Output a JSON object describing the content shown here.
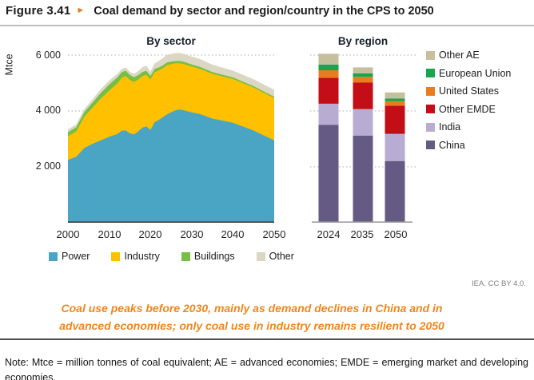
{
  "header": {
    "figure_label": "Figure 3.41",
    "arrow_glyph": "►",
    "title": "Coal demand by sector and region/country in the CPS to 2050"
  },
  "credit": "IEA. CC BY 4.0.",
  "caption": {
    "line1": "Coal use peaks before 2030, mainly as demand declines in China and in",
    "line2": "advanced economies; only coal use in industry remains resilient to 2050",
    "color": "#F0861B"
  },
  "note": "Note: Mtce = million tonnes of coal equivalent; AE = advanced economies; EMDE = emerging market and developing economies.",
  "chart_data": [
    {
      "type": "area",
      "title": "By sector",
      "ylabel": "Mtce",
      "ylim": [
        0,
        6230
      ],
      "yticks": [
        2000,
        4000,
        6000
      ],
      "ytick_labels": [
        "6 000",
        "4 000",
        "2 000"
      ],
      "xlim": [
        2000,
        2050
      ],
      "xtick_labels": [
        "2000",
        "2010",
        "2020",
        "2030",
        "2040",
        "2050"
      ],
      "grid": "dotted horizontal",
      "legend_position": "bottom",
      "x": [
        2000,
        2002,
        2004,
        2006,
        2008,
        2010,
        2012,
        2013,
        2014,
        2015,
        2016,
        2017,
        2018,
        2019,
        2020,
        2021,
        2022,
        2023,
        2024,
        2025,
        2026,
        2027,
        2028,
        2030,
        2032,
        2035,
        2040,
        2045,
        2050
      ],
      "series": [
        {
          "name": "Power",
          "color": "#49A5C3",
          "values": [
            2250,
            2360,
            2680,
            2830,
            2950,
            3080,
            3180,
            3290,
            3310,
            3200,
            3160,
            3260,
            3400,
            3450,
            3320,
            3600,
            3680,
            3780,
            3880,
            3950,
            4020,
            4050,
            4030,
            3950,
            3890,
            3730,
            3580,
            3300,
            2950
          ]
        },
        {
          "name": "Industry",
          "color": "#FFC000",
          "values": [
            850,
            900,
            1120,
            1300,
            1500,
            1650,
            1810,
            1890,
            1940,
            1910,
            1880,
            1860,
            1840,
            1850,
            1810,
            1790,
            1770,
            1750,
            1760,
            1725,
            1685,
            1660,
            1655,
            1640,
            1620,
            1600,
            1565,
            1540,
            1510
          ]
        },
        {
          "name": "Buildings",
          "color": "#76BF45",
          "values": [
            145,
            155,
            165,
            180,
            200,
            220,
            215,
            205,
            195,
            180,
            170,
            160,
            150,
            140,
            125,
            115,
            105,
            100,
            95,
            88,
            82,
            80,
            78,
            75,
            70,
            63,
            55,
            50,
            48
          ]
        },
        {
          "name": "Other",
          "color": "#DBD7C3",
          "values": [
            95,
            105,
            105,
            120,
            140,
            140,
            125,
            115,
            115,
            110,
            120,
            140,
            170,
            180,
            155,
            195,
            235,
            260,
            275,
            277,
            283,
            285,
            287,
            285,
            280,
            265,
            245,
            245,
            250
          ]
        }
      ]
    },
    {
      "type": "bar",
      "title": "By region",
      "categories": [
        "2024",
        "2035",
        "2050"
      ],
      "ylim": [
        0,
        6230
      ],
      "yticks": [
        2000,
        4000,
        6000
      ],
      "grid": "dotted horizontal",
      "stack_order": "bottom-up",
      "legend_position": "right",
      "series": [
        {
          "name": "China",
          "color": "#655A84",
          "values": [
            3500,
            3115,
            2210
          ]
        },
        {
          "name": "India",
          "color": "#B9ACD2",
          "values": [
            760,
            950,
            970
          ]
        },
        {
          "name": "Other EMDE",
          "color": "#C30D17",
          "values": [
            930,
            950,
            1010
          ]
        },
        {
          "name": "United States",
          "color": "#E87C1E",
          "values": [
            270,
            210,
            160
          ]
        },
        {
          "name": "European Union",
          "color": "#16A64C",
          "values": [
            205,
            125,
            95
          ]
        },
        {
          "name": "Other AE",
          "color": "#C6BF9D",
          "values": [
            385,
            210,
            220
          ]
        }
      ],
      "totals": [
        6050,
        5560,
        4665
      ]
    }
  ]
}
